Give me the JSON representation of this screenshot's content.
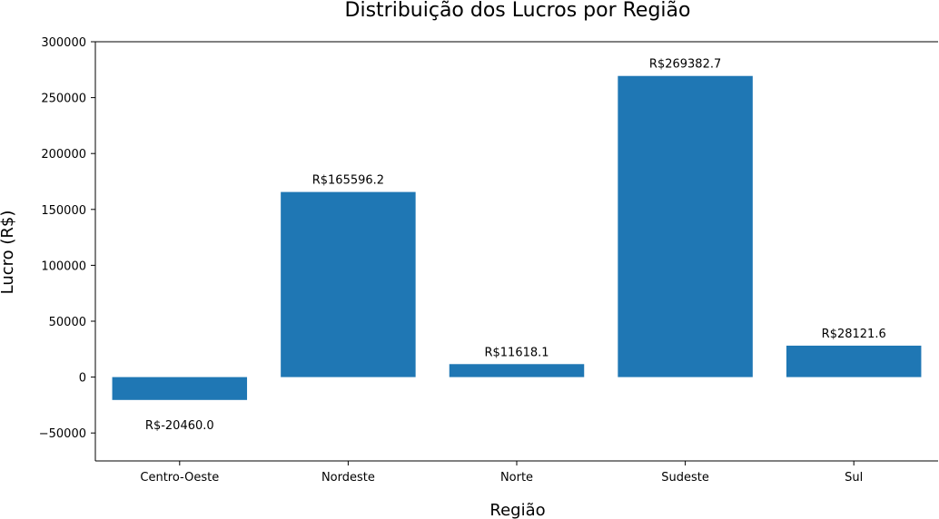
{
  "chart_data": {
    "type": "bar",
    "title": "Distribuição dos Lucros por Região",
    "xlabel": "Região",
    "ylabel": "Lucro (R$)",
    "categories": [
      "Centro-Oeste",
      "Nordeste",
      "Norte",
      "Sudeste",
      "Sul"
    ],
    "values": [
      -20460.0,
      165596.2,
      11618.1,
      269382.7,
      28121.6
    ],
    "data_labels": [
      "R$-20460.0",
      "R$165596.2",
      "R$11618.1",
      "R$269382.7",
      "R$28121.6"
    ],
    "ylim": [
      -75000,
      300000
    ],
    "yticks": [
      -50000,
      0,
      50000,
      100000,
      150000,
      200000,
      250000,
      300000
    ],
    "ytick_labels": [
      "−50000",
      "0",
      "50000",
      "100000",
      "150000",
      "200000",
      "250000",
      "300000"
    ],
    "bar_color": "#1f77b4",
    "grid": false,
    "legend": false
  }
}
